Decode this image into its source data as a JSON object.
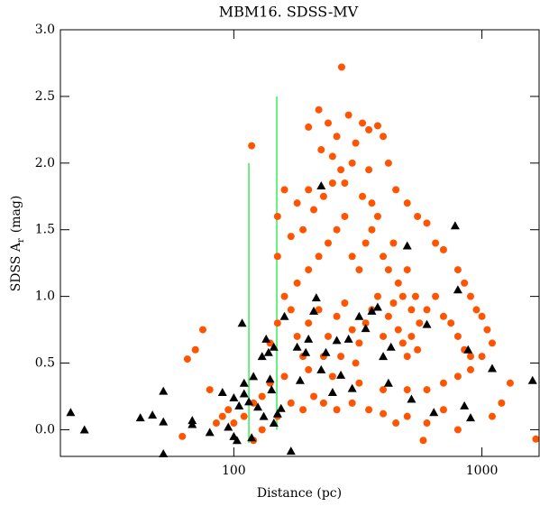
{
  "chart_data": {
    "type": "scatter",
    "title": "MBM16. SDSS-MV",
    "x_label": "Distance (pc)",
    "y_label": {
      "text": "SDSS A",
      "subscript": "r",
      "unit": "(mag)"
    },
    "xscale": "log",
    "xlim": [
      20,
      1700
    ],
    "xticks": [
      100,
      1000
    ],
    "ylim": [
      -0.2,
      3.0
    ],
    "yticks": [
      {
        "value": 0,
        "label": "0.0"
      },
      {
        "value": 0.5,
        "label": "0.5"
      },
      {
        "value": 1,
        "label": "1.0"
      },
      {
        "value": 1.5,
        "label": "1.5"
      },
      {
        "value": 2,
        "label": "2.0"
      },
      {
        "value": 2.5,
        "label": "2.5"
      },
      {
        "value": 3,
        "label": "3.0"
      }
    ],
    "lines": [
      {
        "color": "#33ee55",
        "x": [
          115,
          115
        ],
        "y": [
          -0.1,
          2.0
        ]
      },
      {
        "color": "#33ee55",
        "x": [
          149,
          149
        ],
        "y": [
          0.0,
          2.5
        ]
      }
    ],
    "series": [
      {
        "marker": "circle",
        "color": "#ff5500",
        "x": [
          272,
          118,
          220,
          200,
          240,
          290,
          330,
          350,
          380,
          260,
          310,
          400,
          225,
          250,
          420,
          300,
          350,
          280,
          200,
          160,
          150,
          180,
          450,
          500,
          550,
          600,
          650,
          700,
          800,
          850,
          900,
          950,
          1000,
          1050,
          1100,
          1000,
          900,
          800,
          700,
          600,
          500,
          400,
          320,
          250,
          200,
          160,
          140,
          130,
          120,
          110,
          100,
          95,
          90,
          85,
          80,
          75,
          70,
          65,
          62,
          120,
          130,
          150,
          170,
          190,
          210,
          230,
          260,
          300,
          350,
          400,
          450,
          500,
          600,
          700,
          800,
          1100,
          1650,
          580,
          180,
          200,
          220,
          240,
          260,
          280,
          300,
          320,
          340,
          360,
          380,
          400,
          420,
          440,
          460,
          480,
          500,
          520,
          540,
          560,
          600,
          650,
          700,
          750,
          800,
          850,
          900,
          180,
          200,
          220,
          240,
          260,
          280,
          300,
          320,
          340,
          360,
          380,
          400,
          420,
          440,
          460,
          480,
          500,
          520,
          550,
          170,
          160,
          150,
          140,
          150,
          170,
          190,
          210,
          230,
          250,
          270,
          330,
          360,
          310,
          270,
          230,
          190,
          1200,
          1300
        ],
        "y": [
          2.72,
          2.13,
          2.4,
          2.27,
          2.3,
          2.36,
          2.3,
          2.25,
          2.28,
          2.2,
          2.15,
          2.2,
          2.1,
          2.05,
          2.0,
          2.0,
          1.95,
          1.85,
          1.8,
          1.8,
          1.6,
          1.7,
          1.8,
          1.7,
          1.6,
          1.55,
          1.4,
          1.35,
          1.2,
          1.1,
          1.0,
          0.9,
          0.85,
          0.75,
          0.65,
          0.55,
          0.45,
          0.4,
          0.35,
          0.3,
          0.3,
          0.3,
          0.35,
          0.4,
          0.45,
          0.4,
          0.35,
          0.25,
          0.2,
          0.1,
          0.05,
          0.15,
          0.1,
          0.05,
          0.3,
          0.75,
          0.6,
          0.53,
          -0.05,
          -0.08,
          0.0,
          0.1,
          0.2,
          0.15,
          0.25,
          0.2,
          0.15,
          0.2,
          0.15,
          0.12,
          0.05,
          0.1,
          0.05,
          0.15,
          0.0,
          0.1,
          -0.07,
          -0.08,
          1.1,
          1.2,
          1.3,
          1.4,
          1.5,
          1.6,
          1.3,
          1.2,
          1.4,
          1.5,
          1.6,
          1.3,
          1.2,
          1.4,
          1.1,
          1.0,
          1.2,
          0.9,
          1.0,
          0.8,
          0.9,
          1.0,
          0.85,
          0.8,
          0.7,
          0.6,
          0.55,
          0.7,
          0.8,
          0.9,
          0.7,
          0.85,
          0.95,
          0.75,
          0.65,
          0.8,
          0.9,
          1.0,
          0.7,
          0.85,
          0.95,
          0.75,
          0.65,
          0.55,
          0.7,
          0.6,
          0.9,
          1.0,
          0.8,
          0.65,
          1.3,
          1.45,
          1.5,
          1.65,
          1.75,
          1.85,
          1.95,
          1.75,
          1.7,
          0.5,
          0.55,
          0.55,
          0.55,
          0.2,
          0.35
        ]
      },
      {
        "marker": "triangle",
        "color": "#000000",
        "x": [
          22,
          25,
          42,
          47,
          52,
          52,
          52,
          68,
          68,
          80,
          90,
          95,
          100,
          100,
          103,
          105,
          108,
          110,
          110,
          115,
          118,
          120,
          125,
          130,
          132,
          135,
          138,
          140,
          142,
          145,
          145,
          150,
          155,
          160,
          170,
          180,
          185,
          195,
          200,
          210,
          215,
          225,
          225,
          235,
          250,
          260,
          270,
          290,
          300,
          320,
          340,
          360,
          380,
          400,
          420,
          430,
          500,
          520,
          600,
          640,
          780,
          800,
          850,
          880,
          900,
          1100,
          1600
        ],
        "y": [
          0.13,
          0.0,
          0.09,
          0.11,
          0.06,
          0.29,
          -0.18,
          0.07,
          0.04,
          -0.02,
          0.28,
          0.02,
          0.24,
          -0.05,
          -0.08,
          0.18,
          0.8,
          0.35,
          0.27,
          0.21,
          -0.06,
          0.4,
          0.17,
          0.55,
          0.1,
          0.68,
          0.58,
          0.38,
          0.3,
          0.62,
          0.05,
          0.12,
          0.16,
          0.85,
          -0.16,
          0.62,
          0.37,
          0.58,
          0.68,
          0.89,
          0.99,
          1.83,
          0.45,
          0.58,
          0.28,
          0.67,
          0.41,
          0.68,
          0.31,
          0.85,
          0.76,
          0.89,
          0.92,
          0.55,
          0.35,
          0.62,
          1.38,
          0.23,
          0.79,
          0.13,
          1.53,
          1.05,
          0.18,
          0.6,
          0.09,
          0.46,
          0.37
        ]
      }
    ]
  }
}
